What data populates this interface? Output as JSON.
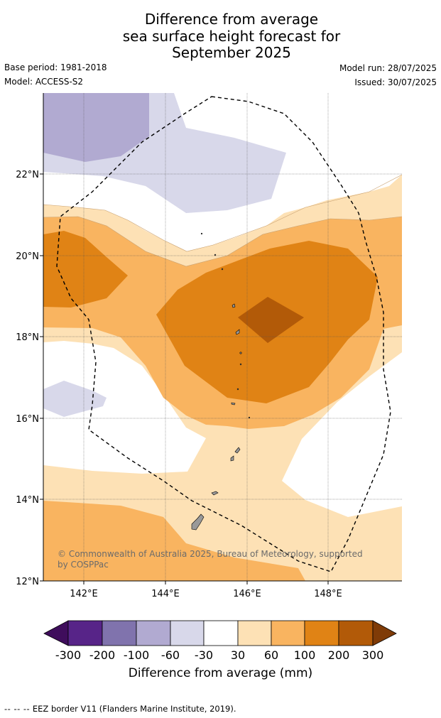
{
  "title": {
    "line1": "Difference from average",
    "line2": "sea surface height forecast for",
    "line3": "September 2025"
  },
  "meta": {
    "base_period": "Base period: 1981-2018",
    "model": "Model: ACCESS-S2",
    "model_run": "Model run: 28/07/2025",
    "issued": "Issued: 30/07/2025"
  },
  "map": {
    "lon_range": [
      141,
      149.8
    ],
    "lat_range": [
      12,
      24
    ],
    "lat_ticks": [
      {
        "value": 22,
        "label": "22°N"
      },
      {
        "value": 20,
        "label": "20°N"
      },
      {
        "value": 18,
        "label": "18°N"
      },
      {
        "value": 16,
        "label": "16°N"
      },
      {
        "value": 14,
        "label": "14°N"
      },
      {
        "value": 12,
        "label": "12°N"
      }
    ],
    "lon_ticks": [
      {
        "value": 142,
        "label": "142°E"
      },
      {
        "value": 144,
        "label": "144°E"
      },
      {
        "value": 146,
        "label": "146°E"
      },
      {
        "value": 148,
        "label": "148°E"
      }
    ],
    "copyright_line1": "© Commonwealth of Australia 2025, Bureau of Meteorology, supported",
    "copyright_line2": "by COSPPac",
    "colors": {
      "c_neg300": "#3f0d5c",
      "c_neg200": "#572488",
      "c_neg100": "#8073ad",
      "c_neg60": "#b1aad1",
      "c_neg30": "#d8d8ea",
      "c_0": "#ffffff",
      "c_30": "#fde1b5",
      "c_60": "#f9b460",
      "c_100": "#e08315",
      "c_200": "#b25a08",
      "c_300": "#7f3b07",
      "land": "#999999",
      "eez": "#000000"
    }
  },
  "colorbar": {
    "labels": [
      "-300",
      "-200",
      "-100",
      "-60",
      "-30",
      "30",
      "60",
      "100",
      "200",
      "300"
    ],
    "title": "Difference from average (mm)"
  },
  "footnote": {
    "dashes": "-- -- --",
    "text": "EEZ border V11 (Flanders Marine Institute, 2019)."
  }
}
